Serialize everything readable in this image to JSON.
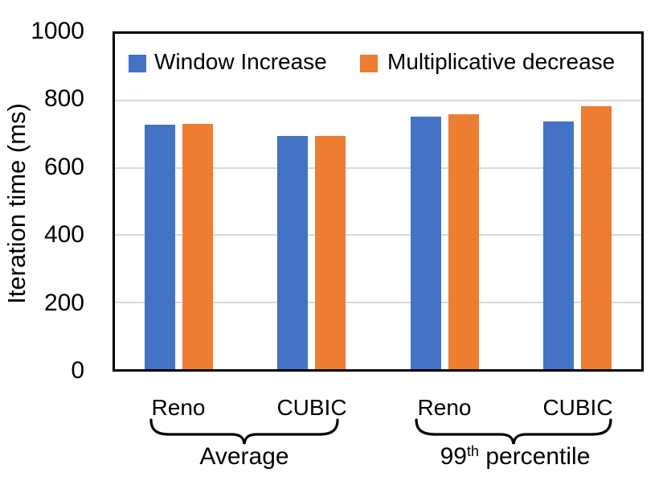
{
  "chart_data": {
    "type": "bar",
    "title": "",
    "xlabel": "",
    "ylabel": "Iteration time (ms)",
    "ylim": [
      0,
      1000
    ],
    "yticks": [
      0,
      200,
      400,
      600,
      800,
      1000
    ],
    "grid": true,
    "legend_position": "top-inside",
    "series": [
      {
        "name": "Window Increase",
        "color": "#4472C4",
        "values": [
          728,
          695,
          753,
          738
        ]
      },
      {
        "name": "Multiplicative decrease",
        "color": "#ED7D31",
        "values": [
          732,
          696,
          761,
          785
        ]
      }
    ],
    "categories": [
      "Reno",
      "CUBIC",
      "Reno",
      "CUBIC"
    ],
    "groups": [
      {
        "label": "Average",
        "label_parts": [
          {
            "text": "Average"
          }
        ],
        "category_indexes": [
          0,
          1
        ]
      },
      {
        "label": "99th percentile",
        "label_parts": [
          {
            "text": "99"
          },
          {
            "text": "th",
            "superscript": true
          },
          {
            "text": " percentile"
          }
        ],
        "category_indexes": [
          2,
          3
        ]
      }
    ],
    "colors": {
      "grid": "#D9D9D9",
      "axis": "#000000",
      "text": "#000000"
    }
  }
}
